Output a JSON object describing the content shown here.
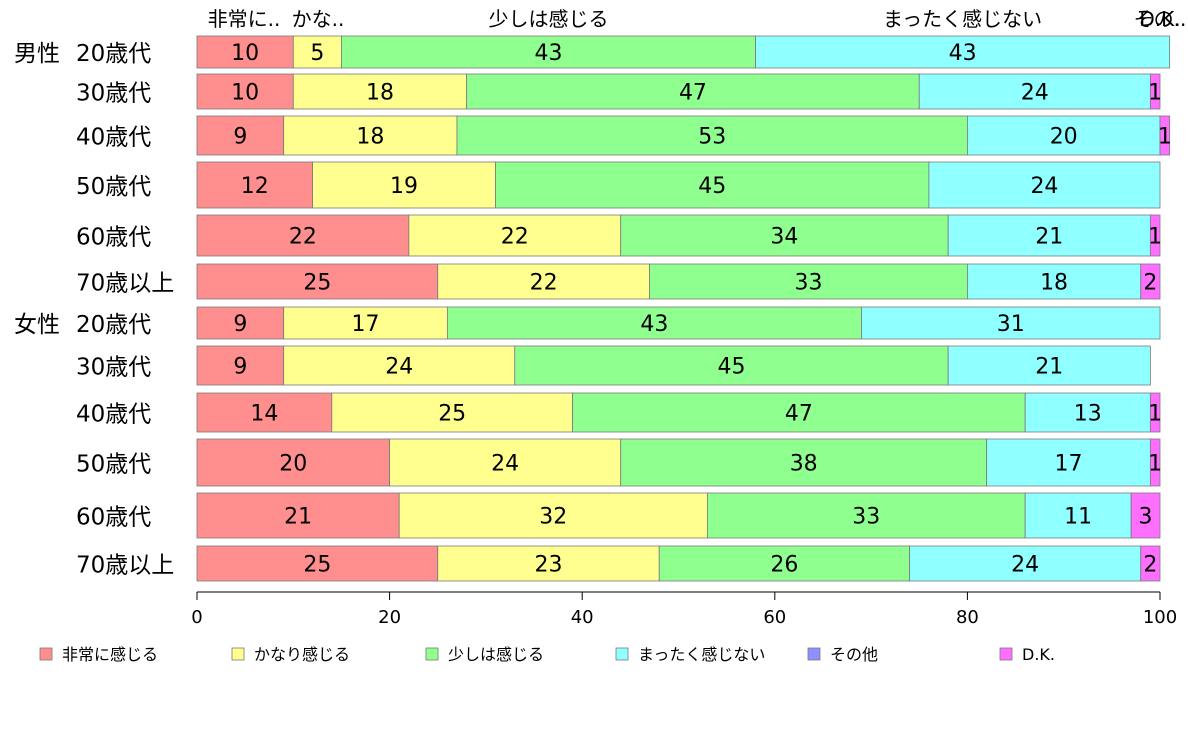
{
  "chart_data": {
    "type": "bar",
    "orientation": "horizontal",
    "stacked": true,
    "groups": [
      {
        "label": "男性",
        "first_row": 0
      },
      {
        "label": "女性",
        "first_row": 6
      }
    ],
    "categories": [
      "20歳代",
      "30歳代",
      "40歳代",
      "50歳代",
      "60歳代",
      "70歳以上",
      "20歳代",
      "30歳代",
      "40歳代",
      "50歳代",
      "60歳代",
      "70歳以上"
    ],
    "series": [
      {
        "name": "非常に感じる",
        "top_label": "非常に..",
        "values": [
          10,
          10,
          9,
          12,
          22,
          25,
          9,
          9,
          14,
          20,
          21,
          25
        ]
      },
      {
        "name": "かなり感じる",
        "top_label": "かな..",
        "values": [
          5,
          18,
          18,
          19,
          22,
          22,
          17,
          24,
          25,
          24,
          32,
          23
        ]
      },
      {
        "name": "少しは感じる",
        "top_label": "少しは感じる",
        "values": [
          43,
          47,
          53,
          45,
          34,
          33,
          43,
          45,
          47,
          38,
          33,
          26
        ]
      },
      {
        "name": "まったく感じない",
        "top_label": "まったく感じない",
        "values": [
          43,
          24,
          20,
          24,
          21,
          18,
          31,
          21,
          13,
          17,
          11,
          24
        ]
      },
      {
        "name": "その他",
        "top_label": "その..",
        "values": [
          0,
          0,
          0,
          0,
          0,
          0,
          0,
          0,
          0,
          0,
          0,
          0
        ]
      },
      {
        "name": "D.K.",
        "top_label": "D.K.",
        "values": [
          0,
          1,
          1,
          0,
          1,
          2,
          0,
          0,
          1,
          1,
          3,
          2
        ]
      }
    ],
    "colors": [
      "#ff8f8f",
      "#ffff8f",
      "#8fff8f",
      "#8fffff",
      "#8f8fff",
      "#ff6fff"
    ],
    "xlim": [
      0,
      100
    ],
    "xticks": [
      0,
      20,
      40,
      60,
      80,
      100
    ],
    "legend_position": "bottom",
    "grid": false
  }
}
